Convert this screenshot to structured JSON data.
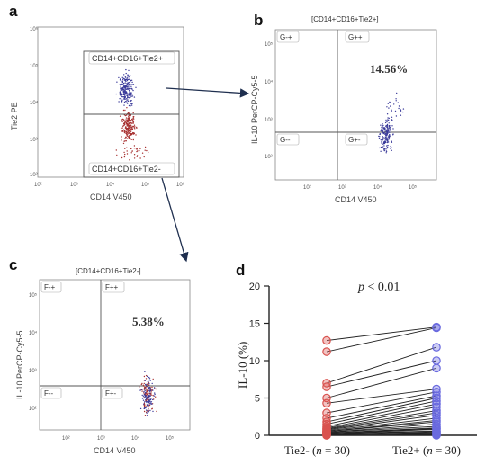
{
  "panels": {
    "a": {
      "label": "a",
      "x_axis_label": "CD14 V450",
      "y_axis_label": "Tie2 PE",
      "x_ticks": [
        "10²",
        "10³",
        "10⁴",
        "10⁵",
        "10⁶"
      ],
      "y_ticks": [
        "10⁶",
        "10⁵",
        "10⁴",
        "10³",
        "10²"
      ],
      "gate_upper": "CD14+CD16+Tie2+",
      "gate_lower": "CD14+CD16+Tie2-"
    },
    "b": {
      "label": "b",
      "title": "[CD14+CD16+Tie2+]",
      "x_axis_label": "CD14 V450",
      "y_axis_label": "IL-10 PerCP-Cy5-5",
      "x_ticks": [
        "10²",
        "10³",
        "10⁴",
        "10⁵"
      ],
      "y_ticks": [
        "10⁵",
        "10⁴",
        "10³",
        "10²"
      ],
      "quadrants": [
        "G-+",
        "G++",
        "G--",
        "G+-"
      ],
      "percent": "14.56%"
    },
    "c": {
      "label": "c",
      "title": "[CD14+CD16+Tie2-]",
      "x_axis_label": "CD14 V450",
      "y_axis_label": "IL-10 PerCP-Cy5-5",
      "x_ticks": [
        "10²",
        "10³",
        "10⁴",
        "10⁵"
      ],
      "y_ticks": [
        "10⁵",
        "10⁴",
        "10³",
        "10²"
      ],
      "quadrants": [
        "F-+",
        "F++",
        "F--",
        "F+-"
      ],
      "percent": "5.38%"
    }
  },
  "colors": {
    "tie2_neg": "#d9534f",
    "tie2_pos": "#6a6adf",
    "flow_blue": "#3b3b9a",
    "flow_red": "#a83232",
    "arrow": "#1f2f4f"
  },
  "chart_data": {
    "type": "scatter",
    "panel_label": "d",
    "annotation": "p < 0.01",
    "ylabel": "IL-10 (%)",
    "ylim": [
      0,
      20
    ],
    "yticks": [
      0,
      5,
      10,
      15,
      20
    ],
    "categories": [
      "Tie2- (n = 30)",
      "Tie2+ (n = 30)"
    ],
    "category_parts": [
      {
        "pre": "Tie2- (",
        "n": "n",
        "post": " = 30)"
      },
      {
        "pre": "Tie2+ (",
        "n": "n",
        "post": " = 30)"
      }
    ],
    "pairs": [
      [
        12.7,
        14.5
      ],
      [
        11.2,
        14.4
      ],
      [
        7.0,
        11.8
      ],
      [
        6.5,
        10.0
      ],
      [
        5.0,
        9.0
      ],
      [
        4.3,
        6.2
      ],
      [
        3.0,
        5.8
      ],
      [
        2.3,
        5.3
      ],
      [
        1.8,
        5.0
      ],
      [
        1.5,
        4.6
      ],
      [
        1.2,
        4.2
      ],
      [
        1.0,
        3.8
      ],
      [
        0.9,
        3.3
      ],
      [
        0.8,
        3.0
      ],
      [
        0.7,
        2.7
      ],
      [
        0.6,
        2.3
      ],
      [
        0.5,
        2.0
      ],
      [
        0.5,
        1.8
      ],
      [
        0.4,
        1.5
      ],
      [
        0.4,
        1.2
      ],
      [
        0.3,
        1.0
      ],
      [
        0.3,
        0.9
      ],
      [
        0.2,
        0.8
      ],
      [
        0.2,
        0.6
      ],
      [
        0.2,
        0.5
      ],
      [
        0.1,
        0.4
      ],
      [
        0.1,
        0.3
      ],
      [
        0.1,
        0.2
      ],
      [
        0.0,
        0.1
      ],
      [
        0.0,
        0.0
      ]
    ]
  }
}
